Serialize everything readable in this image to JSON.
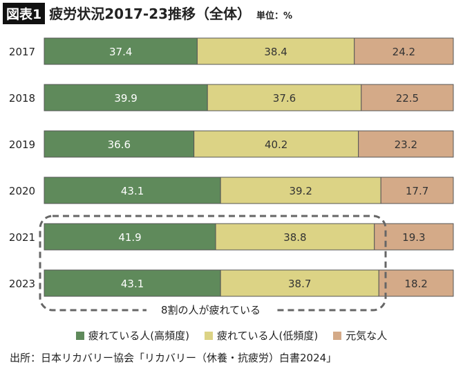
{
  "header": {
    "badge": "図表1",
    "title": "疲労状況2017-23推移（全体）",
    "unit": "単位：%"
  },
  "chart_data": {
    "type": "bar",
    "orientation": "horizontal-stacked-100",
    "categories": [
      "2017",
      "2018",
      "2019",
      "2020",
      "2021",
      "2023"
    ],
    "series": [
      {
        "name": "疲れている人(高頻度)",
        "color": "#5f8a5b",
        "values": [
          37.4,
          39.9,
          36.6,
          43.1,
          41.9,
          43.1
        ]
      },
      {
        "name": "疲れている人(低頻度)",
        "color": "#dcd385",
        "values": [
          38.4,
          37.6,
          40.2,
          39.2,
          38.8,
          38.7
        ]
      },
      {
        "name": "元気な人",
        "color": "#d4aa88",
        "values": [
          24.2,
          22.5,
          23.2,
          17.7,
          19.3,
          18.2
        ]
      }
    ],
    "xlim": [
      0,
      100
    ],
    "legend": "bottom",
    "annotation": "8割の人が疲れている"
  },
  "source": "出所：日本リカバリー協会「リカバリー（休養・抗疲労）白書2024」"
}
